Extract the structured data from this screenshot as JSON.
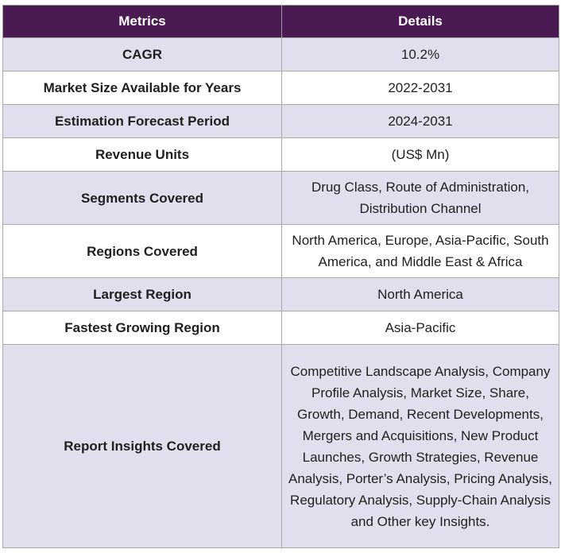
{
  "table": {
    "headers": {
      "metric": "Metrics",
      "details": "Details"
    },
    "rows": [
      {
        "metric": "CAGR",
        "detail": "10.2%"
      },
      {
        "metric": "Market Size Available for Years",
        "detail": "2022-2031"
      },
      {
        "metric": "Estimation Forecast Period",
        "detail": "2024-2031"
      },
      {
        "metric": "Revenue Units",
        "detail": "(US$ Mn)"
      },
      {
        "metric": "Segments Covered",
        "detail": "Drug Class, Route of Administration, Distribution Channel"
      },
      {
        "metric": "Regions Covered",
        "detail": "North America, Europe, Asia-Pacific, South America, and Middle East & Africa"
      },
      {
        "metric": "Largest Region",
        "detail": "North America"
      },
      {
        "metric": "Fastest Growing Region",
        "detail": "Asia-Pacific"
      },
      {
        "metric": "Report Insights Covered",
        "detail": "Competitive Landscape Analysis, Company Profile Analysis, Market Size, Share, Growth, Demand, Recent Developments, Mergers and Acquisitions, New Product Launches, Growth Strategies, Revenue Analysis, Porter’s Analysis, Pricing Analysis, Regulatory Analysis, Supply-Chain Analysis and Other key Insights."
      }
    ]
  },
  "colors": {
    "header_bg": "#4a1a52",
    "header_text": "#ffffff",
    "row_alt_bg": "#e1dfee",
    "row_bg": "#ffffff",
    "border": "#a9a9a9"
  }
}
